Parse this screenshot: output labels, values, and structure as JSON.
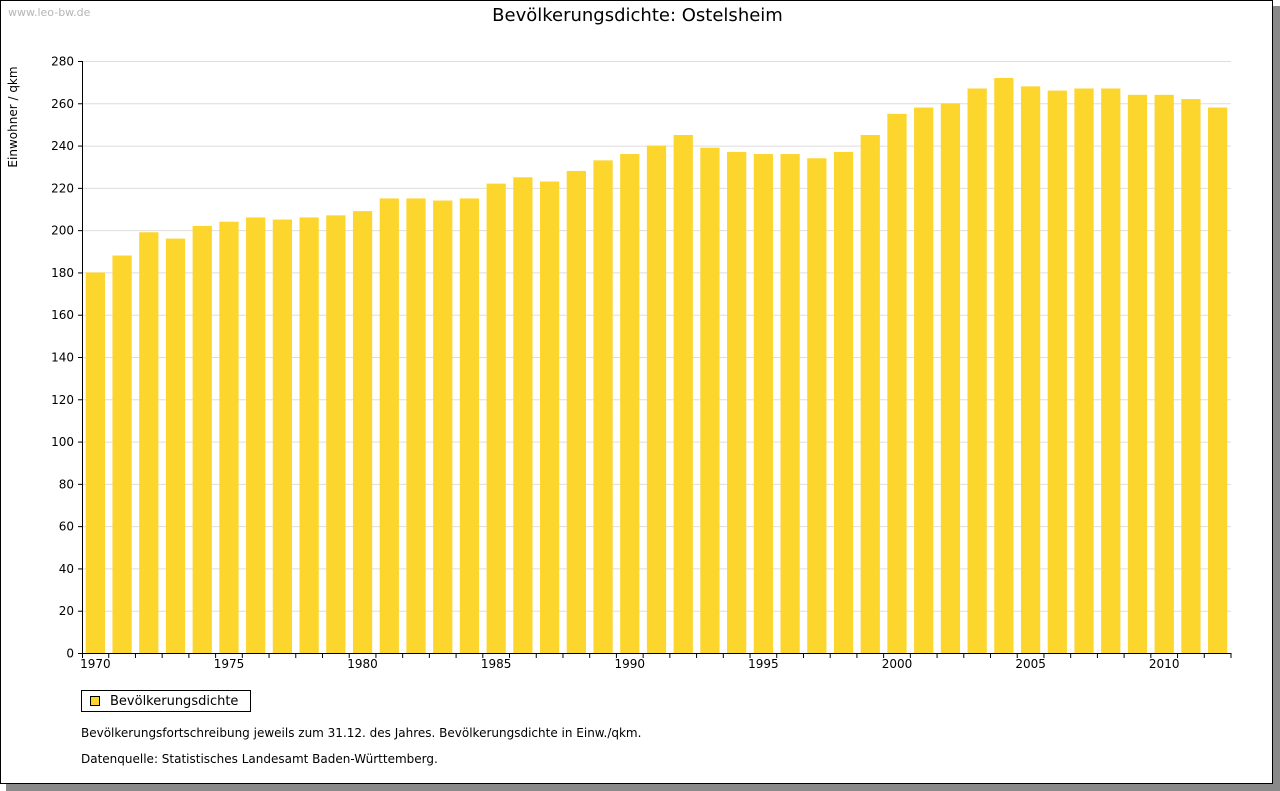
{
  "watermark": "www.leo-bw.de",
  "colors": {
    "bar": "#fcd52d",
    "grid": "#dddddd",
    "axis": "#000000"
  },
  "legend": {
    "label": "Bevölkerungsdichte"
  },
  "notes": {
    "line1": "Bevölkerungsfortschreibung jeweils zum 31.12. des Jahres. Bevölkerungsdichte in Einw./qkm.",
    "line2": "Datenquelle: Statistisches Landesamt Baden-Württemberg."
  },
  "chart_data": {
    "type": "bar",
    "title": "Bevölkerungsdichte: Ostelsheim",
    "xlabel": "",
    "ylabel": "Einwohner / qkm",
    "ylim": [
      0,
      280
    ],
    "yticks": [
      0,
      20,
      40,
      60,
      80,
      100,
      120,
      140,
      160,
      180,
      200,
      220,
      240,
      260,
      280
    ],
    "xtick_labels": [
      "1970",
      "1975",
      "1980",
      "1985",
      "1990",
      "1995",
      "2000",
      "2005",
      "2010"
    ],
    "grid": true,
    "legend_position": "bottom-left",
    "categories": [
      1970,
      1971,
      1972,
      1973,
      1974,
      1975,
      1976,
      1977,
      1978,
      1979,
      1980,
      1981,
      1982,
      1983,
      1984,
      1985,
      1986,
      1987,
      1988,
      1989,
      1990,
      1991,
      1992,
      1993,
      1994,
      1995,
      1996,
      1997,
      1998,
      1999,
      2000,
      2001,
      2002,
      2003,
      2004,
      2005,
      2006,
      2007,
      2008,
      2009,
      2010,
      2011,
      2012
    ],
    "series": [
      {
        "name": "Bevölkerungsdichte",
        "values": [
          180,
          188,
          199,
          196,
          202,
          204,
          206,
          205,
          206,
          207,
          209,
          215,
          215,
          214,
          215,
          222,
          225,
          223,
          228,
          233,
          236,
          240,
          245,
          239,
          237,
          236,
          236,
          234,
          237,
          245,
          255,
          258,
          260,
          267,
          272,
          268,
          266,
          267,
          267,
          264,
          264,
          262,
          258
        ]
      }
    ]
  }
}
